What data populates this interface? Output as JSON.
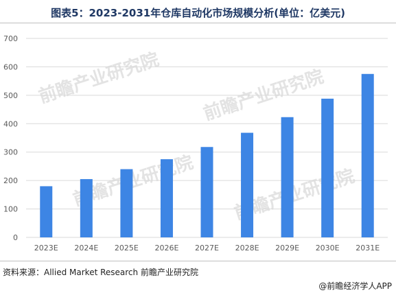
{
  "title": "图表5：2023-2031年仓库自动化市场规模分析(单位：亿美元)",
  "source": "资料来源：Allied Market Research 前瞻产业研究院",
  "credit": "@前瞻经济学人APP",
  "watermark": {
    "text": "前瞻产业研究院"
  },
  "colors": {
    "bar": "#3d85e4",
    "title": "#1f3864",
    "grid": "#d9d9d9",
    "tick": "#595959"
  },
  "chart_data": {
    "type": "bar",
    "title": "图表5：2023-2031年仓库自动化市场规模分析(单位：亿美元)",
    "categories": [
      "2023E",
      "2024E",
      "2025E",
      "2026E",
      "2027E",
      "2028E",
      "2029E",
      "2030E",
      "2031E"
    ],
    "values": [
      180,
      205,
      240,
      275,
      318,
      368,
      423,
      488,
      575
    ],
    "ylim": [
      0,
      700
    ],
    "yticks": [
      0,
      100,
      200,
      300,
      400,
      500,
      600,
      700
    ],
    "grid": true,
    "legend": "none"
  }
}
